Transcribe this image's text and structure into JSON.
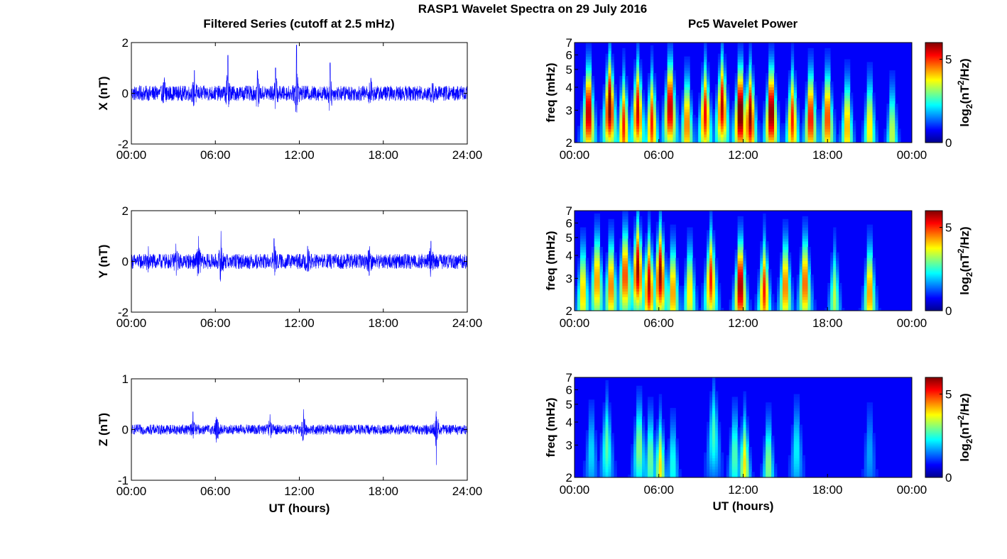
{
  "title": "RASP1 Wavelet Spectra on 29 July 2016",
  "left_column_title": "Filtered Series (cutoff at 2.5 mHz)",
  "right_column_title": "Pc5 Wavelet Power",
  "colors": {
    "series_line": "#0000ff",
    "axes": "#000000",
    "background": "#ffffff",
    "colormap": "jet"
  },
  "chart_data": [
    {
      "type": "line",
      "panel": "X",
      "xlabel": "",
      "ylabel": "X (nT)",
      "xlim": [
        0,
        24
      ],
      "ylim": [
        -2,
        2
      ],
      "xticks": [
        "00:00",
        "06:00",
        "12:00",
        "18:00",
        "24:00"
      ],
      "yticks": [
        "-2",
        "0",
        "2"
      ],
      "yticks_values": [
        -2,
        0,
        2
      ],
      "noise_amplitude": 0.3,
      "bursts": [
        [
          2.4,
          1.2
        ],
        [
          4.5,
          0.9
        ],
        [
          6.9,
          1.5
        ],
        [
          9.0,
          0.9
        ],
        [
          10.3,
          1.0
        ],
        [
          11.8,
          1.9
        ],
        [
          14.2,
          1.2
        ],
        [
          17.1,
          0.6
        ],
        [
          21.5,
          0.4
        ]
      ],
      "grid": false
    },
    {
      "type": "line",
      "panel": "Y",
      "xlabel": "",
      "ylabel": "Y (nT)",
      "xlim": [
        0,
        24
      ],
      "ylim": [
        -2,
        2
      ],
      "xticks": [
        "00:00",
        "06:00",
        "12:00",
        "18:00",
        "24:00"
      ],
      "yticks": [
        "-2",
        "0",
        "2"
      ],
      "yticks_values": [
        -2,
        0,
        2
      ],
      "noise_amplitude": 0.3,
      "bursts": [
        [
          1.2,
          0.6
        ],
        [
          3.2,
          0.7
        ],
        [
          4.8,
          1.0
        ],
        [
          6.4,
          1.2
        ],
        [
          10.2,
          0.9
        ],
        [
          12.6,
          0.6
        ],
        [
          17.0,
          0.6
        ],
        [
          21.4,
          0.8
        ]
      ],
      "grid": false
    },
    {
      "type": "line",
      "panel": "Z",
      "xlabel": "UT (hours)",
      "ylabel": "Z (nT)",
      "xlim": [
        0,
        24
      ],
      "ylim": [
        -1,
        1
      ],
      "xticks": [
        "00:00",
        "06:00",
        "12:00",
        "18:00",
        "24:00"
      ],
      "yticks": [
        "-1",
        "0",
        "1"
      ],
      "yticks_values": [
        -1,
        0,
        1
      ],
      "noise_amplitude": 0.1,
      "bursts": [
        [
          4.4,
          0.35
        ],
        [
          6.1,
          0.4
        ],
        [
          9.9,
          0.3
        ],
        [
          12.3,
          0.4
        ],
        [
          21.8,
          -0.7
        ]
      ],
      "grid": false
    },
    {
      "type": "heatmap",
      "panel": "X",
      "xlabel": "",
      "ylabel": "freq (mHz)",
      "xlim": [
        0,
        24
      ],
      "ylim": [
        2,
        7
      ],
      "yscale": "log",
      "xticks": [
        "00:00",
        "06:00",
        "12:00",
        "18:00",
        "00:00"
      ],
      "yticks": [
        "2",
        "3",
        "4",
        "5",
        "6",
        "7"
      ],
      "yticks_values": [
        2,
        3,
        4,
        5,
        6,
        7
      ],
      "colorbar_label": "log2(nT2/Hz)",
      "colorbar_range": [
        0,
        6
      ],
      "colorbar_ticks": [
        "0",
        "5"
      ],
      "colorbar_ticks_values": [
        0,
        5
      ],
      "blobs": [
        [
          1.0,
          3.0,
          6.0
        ],
        [
          2.5,
          3.2,
          6.3
        ],
        [
          3.5,
          2.5,
          5.0
        ],
        [
          4.5,
          3.0,
          5.5
        ],
        [
          5.5,
          2.6,
          5.0
        ],
        [
          6.8,
          3.2,
          6.0
        ],
        [
          8.0,
          2.6,
          4.6
        ],
        [
          9.3,
          2.9,
          5.2
        ],
        [
          10.5,
          3.2,
          5.6
        ],
        [
          11.8,
          3.0,
          6.8
        ],
        [
          12.5,
          2.8,
          6.0
        ],
        [
          14.0,
          3.0,
          6.4
        ],
        [
          15.5,
          2.7,
          5.0
        ],
        [
          16.8,
          2.8,
          5.4
        ],
        [
          18.0,
          2.8,
          5.0
        ],
        [
          19.4,
          2.5,
          4.2
        ],
        [
          21.0,
          2.5,
          3.8
        ],
        [
          22.6,
          2.3,
          3.2
        ]
      ]
    },
    {
      "type": "heatmap",
      "panel": "Y",
      "xlabel": "",
      "ylabel": "freq (mHz)",
      "xlim": [
        0,
        24
      ],
      "ylim": [
        2,
        7
      ],
      "yscale": "log",
      "xticks": [
        "00:00",
        "06:00",
        "12:00",
        "18:00",
        "00:00"
      ],
      "yticks": [
        "2",
        "3",
        "4",
        "5",
        "6",
        "7"
      ],
      "yticks_values": [
        2,
        3,
        4,
        5,
        6,
        7
      ],
      "colorbar_label": "log2(nT2/Hz)",
      "colorbar_range": [
        0,
        6
      ],
      "colorbar_ticks": [
        "0",
        "5"
      ],
      "colorbar_ticks_values": [
        0,
        5
      ],
      "blobs": [
        [
          0.6,
          2.6,
          4.0
        ],
        [
          1.6,
          3.0,
          4.4
        ],
        [
          2.6,
          2.8,
          4.6
        ],
        [
          3.6,
          3.2,
          5.0
        ],
        [
          4.5,
          3.4,
          5.8
        ],
        [
          5.3,
          2.8,
          5.6
        ],
        [
          6.1,
          3.2,
          6.0
        ],
        [
          7.0,
          2.6,
          4.4
        ],
        [
          8.2,
          2.6,
          3.8
        ],
        [
          9.7,
          3.0,
          5.0
        ],
        [
          11.8,
          2.8,
          6.2
        ],
        [
          13.5,
          2.6,
          5.0
        ],
        [
          15.0,
          2.8,
          4.6
        ],
        [
          16.4,
          2.9,
          4.8
        ],
        [
          18.5,
          2.4,
          3.0
        ],
        [
          21.0,
          2.6,
          4.4
        ]
      ]
    },
    {
      "type": "heatmap",
      "panel": "Z",
      "xlabel": "UT (hours)",
      "ylabel": "freq (mHz)",
      "xlim": [
        0,
        24
      ],
      "ylim": [
        2,
        7
      ],
      "yscale": "log",
      "xticks": [
        "00:00",
        "06:00",
        "12:00",
        "18:00",
        "00:00"
      ],
      "yticks": [
        "2",
        "3",
        "4",
        "5",
        "6",
        "7"
      ],
      "yticks_values": [
        2,
        3,
        4,
        5,
        6,
        7
      ],
      "colorbar_label": "log2(nT2/Hz)",
      "colorbar_range": [
        0,
        6
      ],
      "colorbar_ticks": [
        "0",
        "5"
      ],
      "colorbar_ticks_values": [
        0,
        5
      ],
      "blobs": [
        [
          1.2,
          2.8,
          1.6
        ],
        [
          2.3,
          3.0,
          2.4
        ],
        [
          4.6,
          3.0,
          2.8
        ],
        [
          5.4,
          2.6,
          2.6
        ],
        [
          6.1,
          2.3,
          3.6
        ],
        [
          7.0,
          2.4,
          2.0
        ],
        [
          9.9,
          3.5,
          2.2
        ],
        [
          11.4,
          2.7,
          2.4
        ],
        [
          12.1,
          2.4,
          3.6
        ],
        [
          13.8,
          2.4,
          2.8
        ],
        [
          15.8,
          2.9,
          1.8
        ],
        [
          21.0,
          2.8,
          1.2
        ]
      ]
    }
  ]
}
